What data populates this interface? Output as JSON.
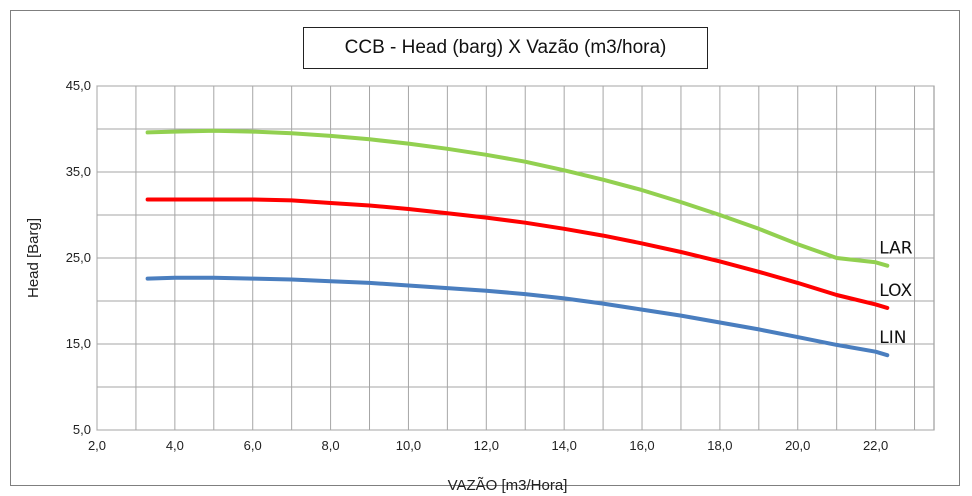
{
  "chart_data": {
    "type": "line",
    "title": "CCB - Head (barg) X Vazão (m3/hora)",
    "xlabel": "VAZÃO [m3/Hora]",
    "ylabel": "Head  [Barg]",
    "xlim": [
      2,
      23.5
    ],
    "ylim": [
      5,
      45
    ],
    "xticks": [
      "2,0",
      "4,0",
      "6,0",
      "8,0",
      "10,0",
      "12,0",
      "14,0",
      "16,0",
      "18,0",
      "20,0",
      "22,0"
    ],
    "yticks": [
      "5,0",
      "15,0",
      "25,0",
      "35,0",
      "45,0"
    ],
    "grid": true,
    "series": [
      {
        "name": "LAR",
        "color": "#92d050",
        "x": [
          3.3,
          4,
          5,
          6,
          7,
          8,
          9,
          10,
          11,
          12,
          13,
          14,
          15,
          16,
          17,
          18,
          19,
          20,
          21,
          22,
          22.3
        ],
        "y": [
          39.6,
          39.7,
          39.8,
          39.7,
          39.5,
          39.2,
          38.8,
          38.3,
          37.7,
          37.0,
          36.2,
          35.2,
          34.1,
          32.9,
          31.5,
          30.0,
          28.4,
          26.6,
          25.0,
          24.5,
          24.1
        ]
      },
      {
        "name": "LOX",
        "color": "#ff0000",
        "x": [
          3.3,
          4,
          5,
          6,
          7,
          8,
          9,
          10,
          11,
          12,
          13,
          14,
          15,
          16,
          17,
          18,
          19,
          20,
          21,
          22,
          22.3
        ],
        "y": [
          31.8,
          31.8,
          31.8,
          31.8,
          31.7,
          31.4,
          31.1,
          30.7,
          30.2,
          29.7,
          29.1,
          28.4,
          27.6,
          26.7,
          25.7,
          24.6,
          23.4,
          22.1,
          20.7,
          19.6,
          19.2
        ]
      },
      {
        "name": "LIN",
        "color": "#4a7ebf",
        "x": [
          3.3,
          4,
          5,
          6,
          7,
          8,
          9,
          10,
          11,
          12,
          13,
          14,
          15,
          16,
          17,
          18,
          19,
          20,
          21,
          22,
          22.3
        ],
        "y": [
          22.6,
          22.7,
          22.7,
          22.6,
          22.5,
          22.3,
          22.1,
          21.8,
          21.5,
          21.2,
          20.8,
          20.3,
          19.7,
          19.0,
          18.3,
          17.5,
          16.7,
          15.8,
          14.9,
          14.1,
          13.7
        ]
      }
    ]
  }
}
